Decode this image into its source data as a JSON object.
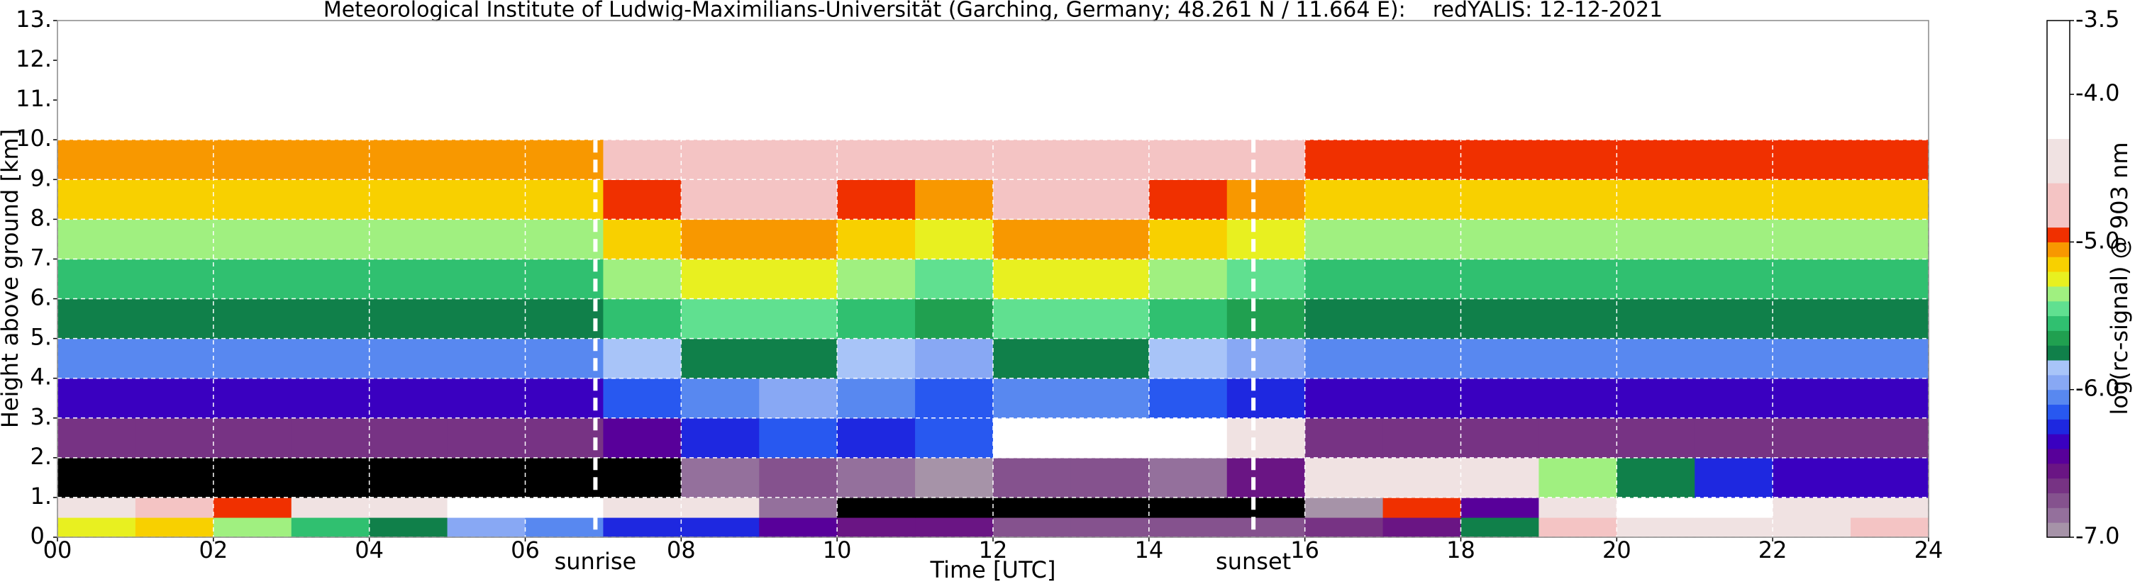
{
  "chart_data": {
    "type": "heatmap",
    "title": "Meteorological Institute of Ludwig-Maximilians-Universität (Garching, Germany; 48.261 N / 11.664 E):    redYALIS: 12-12-2021",
    "x_label": "Time [UTC]",
    "y_label": "Height above ground [km]",
    "colorbar_label": "log(rc-signal) @ 903 nm",
    "xlim": [
      0,
      24
    ],
    "ylim": [
      0,
      13
    ],
    "xticks": [
      {
        "value": 0,
        "label": "00"
      },
      {
        "value": 2,
        "label": "02"
      },
      {
        "value": 4,
        "label": "04"
      },
      {
        "value": 6,
        "label": "06"
      },
      {
        "value": 8,
        "label": "08"
      },
      {
        "value": 10,
        "label": "10"
      },
      {
        "value": 12,
        "label": "12"
      },
      {
        "value": 14,
        "label": "14"
      },
      {
        "value": 16,
        "label": "16"
      },
      {
        "value": 18,
        "label": "18"
      },
      {
        "value": 20,
        "label": "20"
      },
      {
        "value": 22,
        "label": "22"
      },
      {
        "value": 24,
        "label": "24"
      }
    ],
    "yticks": [
      {
        "value": 0,
        "label": "0."
      },
      {
        "value": 1,
        "label": "1."
      },
      {
        "value": 2,
        "label": "2."
      },
      {
        "value": 3,
        "label": "3."
      },
      {
        "value": 4,
        "label": "4."
      },
      {
        "value": 5,
        "label": "5."
      },
      {
        "value": 6,
        "label": "6."
      },
      {
        "value": 7,
        "label": "7."
      },
      {
        "value": 8,
        "label": "8."
      },
      {
        "value": 9,
        "label": "9."
      },
      {
        "value": 10,
        "label": "10."
      },
      {
        "value": 11,
        "label": "11."
      },
      {
        "value": 12,
        "label": "12."
      },
      {
        "value": 13,
        "label": "13."
      }
    ],
    "grid": true,
    "x_edges": [
      0,
      1,
      2,
      3,
      4,
      5,
      6,
      7,
      8,
      9,
      10,
      11,
      12,
      13,
      14,
      15,
      16,
      17,
      18,
      19,
      20,
      21,
      22,
      23,
      24
    ],
    "y_edges": [
      0,
      0.5,
      1,
      2,
      3,
      4,
      5,
      6,
      7,
      8,
      9,
      10
    ],
    "z": [
      [
        -5.3,
        -5.2,
        -5.4,
        -5.6,
        -5.8,
        -6.0,
        -6.1,
        -6.3,
        -6.3,
        -6.5,
        -6.6,
        -6.6,
        -6.8,
        -6.8,
        -6.8,
        -6.8,
        -6.7,
        -6.6,
        -5.8,
        -4.9,
        -4.6,
        -4.5,
        -4.6,
        -4.8
      ],
      [
        -4.4,
        -4.8,
        -5.0,
        -4.6,
        -4.4,
        -4.3,
        -4.3,
        -4.4,
        -4.6,
        -6.9,
        -7.1,
        -7.2,
        -7.2,
        -7.2,
        -7.2,
        -7.2,
        -7.0,
        -5.0,
        -6.5,
        -4.4,
        -4.3,
        -4.3,
        -4.4,
        -4.5
      ],
      [
        -7.5,
        -7.5,
        -7.5,
        -7.5,
        -7.5,
        -7.5,
        -7.5,
        -7.3,
        -6.9,
        -6.8,
        -6.9,
        -7.0,
        -6.8,
        -6.8,
        -6.9,
        -6.6,
        -4.6,
        -4.5,
        -4.4,
        -5.4,
        -5.8,
        -6.3,
        -6.4,
        -6.4
      ],
      [
        -6.7,
        -6.7,
        -6.7,
        -6.7,
        -6.7,
        -6.7,
        -6.7,
        -6.5,
        -6.3,
        -6.2,
        -6.3,
        -6.2,
        -4.2,
        -4.2,
        -4.3,
        -4.6,
        -6.7,
        -6.7,
        -6.7,
        -6.7,
        -6.7,
        -6.7,
        -6.7,
        -6.7
      ],
      [
        -6.4,
        -6.4,
        -6.4,
        -6.4,
        -6.4,
        -6.4,
        -6.4,
        -6.2,
        -6.1,
        -6.0,
        -6.1,
        -6.2,
        -6.1,
        -6.1,
        -6.2,
        -6.3,
        -6.4,
        -6.4,
        -6.4,
        -6.4,
        -6.4,
        -6.4,
        -6.4,
        -6.4
      ],
      [
        -6.1,
        -6.1,
        -6.1,
        -6.1,
        -6.1,
        -6.1,
        -6.1,
        -5.9,
        -5.8,
        -5.8,
        -5.9,
        -6.0,
        -5.8,
        -5.8,
        -5.9,
        -6.0,
        -6.1,
        -6.1,
        -6.1,
        -6.1,
        -6.1,
        -6.1,
        -6.1,
        -6.1
      ],
      [
        -5.8,
        -5.8,
        -5.8,
        -5.8,
        -5.8,
        -5.8,
        -5.8,
        -5.6,
        -5.5,
        -5.5,
        -5.6,
        -5.7,
        -5.5,
        -5.5,
        -5.6,
        -5.7,
        -5.8,
        -5.8,
        -5.8,
        -5.8,
        -5.8,
        -5.8,
        -5.8,
        -5.8
      ],
      [
        -5.6,
        -5.6,
        -5.6,
        -5.6,
        -5.6,
        -5.6,
        -5.6,
        -5.4,
        -5.3,
        -5.3,
        -5.4,
        -5.5,
        -5.3,
        -5.3,
        -5.4,
        -5.5,
        -5.6,
        -5.6,
        -5.6,
        -5.6,
        -5.6,
        -5.6,
        -5.6,
        -5.6
      ],
      [
        -5.4,
        -5.4,
        -5.4,
        -5.4,
        -5.4,
        -5.4,
        -5.4,
        -5.2,
        -5.1,
        -5.1,
        -5.2,
        -5.3,
        -5.1,
        -5.1,
        -5.2,
        -5.3,
        -5.4,
        -5.4,
        -5.4,
        -5.4,
        -5.4,
        -5.4,
        -5.4,
        -5.4
      ],
      [
        -5.2,
        -5.2,
        -5.2,
        -5.2,
        -5.2,
        -5.2,
        -5.2,
        -5.0,
        -4.9,
        -4.9,
        -5.0,
        -5.1,
        -4.9,
        -4.9,
        -5.0,
        -5.1,
        -5.2,
        -5.2,
        -5.2,
        -5.2,
        -5.2,
        -5.2,
        -5.2,
        -5.2
      ],
      [
        -5.1,
        -5.1,
        -5.1,
        -5.1,
        -5.1,
        -5.1,
        -5.1,
        -4.8,
        -4.7,
        -4.7,
        -4.8,
        -4.9,
        -4.7,
        -4.7,
        -4.8,
        -4.9,
        -5.0,
        -5.0,
        -5.0,
        -5.0,
        -5.0,
        -5.0,
        -5.0,
        -5.0
      ]
    ],
    "zlim": [
      -7,
      -3.5
    ],
    "zticks": [
      -3.5,
      {
        "value": -4,
        "label": "-4.0"
      },
      {
        "value": -5,
        "label": "-5.0"
      },
      {
        "value": -6,
        "label": "-6.0"
      },
      {
        "value": -7,
        "label": "-7.0"
      }
    ],
    "under_color": "#000000",
    "colorscale": [
      [
        -7.0,
        "#a693a8"
      ],
      [
        -6.9,
        "#94709c"
      ],
      [
        -6.8,
        "#85528e"
      ],
      [
        -6.7,
        "#773384"
      ],
      [
        -6.6,
        "#6a1584"
      ],
      [
        -6.5,
        "#58009a"
      ],
      [
        -6.4,
        "#3a00c0"
      ],
      [
        -6.3,
        "#1e28e0"
      ],
      [
        -6.2,
        "#2858f0"
      ],
      [
        -6.1,
        "#5888f0"
      ],
      [
        -6.0,
        "#88a8f4"
      ],
      [
        -5.9,
        "#a8c4f8"
      ],
      [
        -5.8,
        "#10804a"
      ],
      [
        -5.7,
        "#20a050"
      ],
      [
        -5.6,
        "#30c070"
      ],
      [
        -5.5,
        "#60e090"
      ],
      [
        -5.4,
        "#a0f080"
      ],
      [
        -5.3,
        "#e8f020"
      ],
      [
        -5.2,
        "#f8d000"
      ],
      [
        -5.1,
        "#f89800"
      ],
      [
        -5.0,
        "#f03000"
      ],
      [
        -4.9,
        "#f4c4c4"
      ],
      [
        -4.6,
        "#f0e2e2"
      ],
      [
        -4.3,
        "#ffffff"
      ]
    ],
    "annotations": [
      {
        "x": 6.9,
        "label": "sunrise"
      },
      {
        "x": 15.34,
        "label": "sunset"
      }
    ]
  }
}
